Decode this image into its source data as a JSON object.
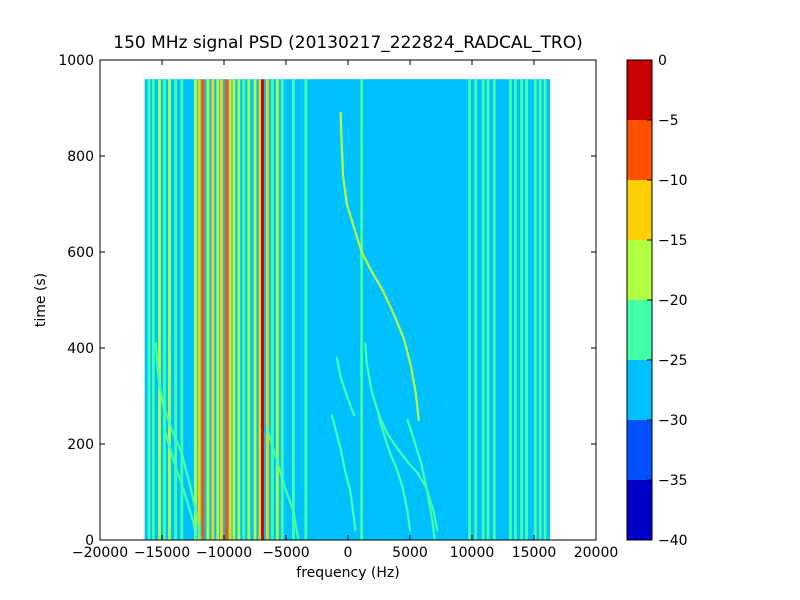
{
  "chart_data": {
    "type": "heatmap",
    "title": "150 MHz signal PSD (20130217_222824_RADCAL_TRO)",
    "xlabel": "frequency (Hz)",
    "ylabel": "time (s)",
    "xlim": [
      -20000,
      20000
    ],
    "ylim": [
      0,
      1000
    ],
    "x_ticks": [
      -20000,
      -15000,
      -10000,
      -5000,
      0,
      5000,
      10000,
      15000,
      20000
    ],
    "x_tick_labels": [
      "−20000",
      "−15000",
      "−10000",
      "−5000",
      "0",
      "5000",
      "10000",
      "15000",
      "20000"
    ],
    "y_ticks": [
      0,
      200,
      400,
      600,
      800,
      1000
    ],
    "y_tick_labels": [
      "0",
      "200",
      "400",
      "600",
      "800",
      "1000"
    ],
    "data_extent": {
      "x": [
        -16400,
        16300
      ],
      "y": [
        0,
        960
      ]
    },
    "background_level": -27.5,
    "colorbar": {
      "levels": [
        -40,
        -35,
        -30,
        -25,
        -20,
        -15,
        -10,
        -5,
        0
      ],
      "tick_labels": [
        "−40",
        "−35",
        "−30",
        "−25",
        "−20",
        "−15",
        "−10",
        "−5",
        "0"
      ],
      "colors": [
        "#0000c8",
        "#0050ff",
        "#00c0ff",
        "#40ffa8",
        "#b0ff40",
        "#ffd000",
        "#ff5000",
        "#c80000"
      ]
    },
    "vertical_lines": [
      {
        "f": -16050,
        "level": -22.5
      },
      {
        "f": -15700,
        "level": -22.5
      },
      {
        "f": -15200,
        "level": -17.5
      },
      {
        "f": -14800,
        "level": -22.5
      },
      {
        "f": -14400,
        "level": -17.5
      },
      {
        "f": -13900,
        "level": -22.5
      },
      {
        "f": -13400,
        "level": -22.5
      },
      {
        "f": -12300,
        "level": -17.5
      },
      {
        "f": -12000,
        "level": -12.5
      },
      {
        "f": -11700,
        "level": -7.5
      },
      {
        "f": -11300,
        "level": -17.5
      },
      {
        "f": -10900,
        "level": -12.5
      },
      {
        "f": -10500,
        "level": -17.5
      },
      {
        "f": -10200,
        "level": -12.5
      },
      {
        "f": -9800,
        "level": -7.5
      },
      {
        "f": -9500,
        "level": -12.5
      },
      {
        "f": -9200,
        "level": -17.5
      },
      {
        "f": -8800,
        "level": -17.5
      },
      {
        "f": -8400,
        "level": -22.5
      },
      {
        "f": -8000,
        "level": -17.5
      },
      {
        "f": -7500,
        "level": -17.5
      },
      {
        "f": -7100,
        "level": -12.5
      },
      {
        "f": -6900,
        "level": -2.5
      },
      {
        "f": -6500,
        "level": -12.5
      },
      {
        "f": -6100,
        "level": -22.5
      },
      {
        "f": -5700,
        "level": -17.5
      },
      {
        "f": -5300,
        "level": -22.5
      },
      {
        "f": -4400,
        "level": -22.5
      },
      {
        "f": -3400,
        "level": -22.5
      },
      {
        "f": 1100,
        "level": -22.5
      },
      {
        "f": 9800,
        "level": -22.5
      },
      {
        "f": 10300,
        "level": -22.5
      },
      {
        "f": 10900,
        "level": -22.5
      },
      {
        "f": 11300,
        "level": -22.5
      },
      {
        "f": 11800,
        "level": -22.5
      },
      {
        "f": 13100,
        "level": -22.5
      },
      {
        "f": 13500,
        "level": -22.5
      },
      {
        "f": 14000,
        "level": -22.5
      },
      {
        "f": 14400,
        "level": -22.5
      },
      {
        "f": 15100,
        "level": -22.5
      },
      {
        "f": 15500,
        "level": -22.5
      },
      {
        "f": 15900,
        "level": -22.5
      }
    ],
    "chirps": [
      {
        "level": -17.5,
        "points": [
          [
            -600,
            890
          ],
          [
            -500,
            820
          ],
          [
            -400,
            760
          ],
          [
            -100,
            700
          ],
          [
            500,
            650
          ],
          [
            1100,
            600
          ],
          [
            1900,
            560
          ],
          [
            2800,
            520
          ],
          [
            3700,
            470
          ],
          [
            4500,
            420
          ],
          [
            5100,
            360
          ],
          [
            5500,
            300
          ],
          [
            5700,
            250
          ]
        ]
      },
      {
        "level": -22.5,
        "points": [
          [
            -15500,
            410
          ],
          [
            -15300,
            340
          ],
          [
            -14900,
            280
          ],
          [
            -14200,
            230
          ],
          [
            -13400,
            180
          ],
          [
            -12700,
            110
          ],
          [
            -12100,
            40
          ],
          [
            -11900,
            0
          ]
        ]
      },
      {
        "level": -22.5,
        "points": [
          [
            -14800,
            230
          ],
          [
            -14000,
            160
          ],
          [
            -13200,
            100
          ],
          [
            -12500,
            40
          ],
          [
            -12200,
            0
          ]
        ]
      },
      {
        "level": -22.5,
        "points": [
          [
            -6500,
            230
          ],
          [
            -5900,
            180
          ],
          [
            -5100,
            110
          ],
          [
            -4400,
            60
          ],
          [
            -4000,
            0
          ]
        ]
      },
      {
        "level": -22.5,
        "points": [
          [
            -1300,
            260
          ],
          [
            -1000,
            230
          ],
          [
            -600,
            190
          ],
          [
            -200,
            140
          ],
          [
            200,
            100
          ],
          [
            400,
            60
          ],
          [
            600,
            20
          ]
        ]
      },
      {
        "level": -22.5,
        "points": [
          [
            2500,
            255
          ],
          [
            2900,
            220
          ],
          [
            3400,
            180
          ],
          [
            3900,
            150
          ],
          [
            4400,
            110
          ],
          [
            4800,
            60
          ],
          [
            5000,
            20
          ]
        ]
      },
      {
        "level": -22.5,
        "points": [
          [
            1400,
            410
          ],
          [
            1500,
            370
          ],
          [
            1900,
            310
          ],
          [
            2500,
            260
          ],
          [
            3200,
            220
          ],
          [
            4000,
            190
          ],
          [
            4900,
            160
          ],
          [
            5600,
            140
          ],
          [
            6300,
            110
          ],
          [
            6900,
            60
          ],
          [
            7200,
            20
          ]
        ]
      },
      {
        "level": -22.5,
        "points": [
          [
            4800,
            250
          ],
          [
            5300,
            210
          ],
          [
            5900,
            160
          ],
          [
            6400,
            100
          ],
          [
            6800,
            40
          ],
          [
            7000,
            0
          ]
        ]
      },
      {
        "level": -22.5,
        "points": [
          [
            -900,
            380
          ],
          [
            -600,
            340
          ],
          [
            -100,
            300
          ],
          [
            500,
            260
          ]
        ]
      }
    ]
  }
}
